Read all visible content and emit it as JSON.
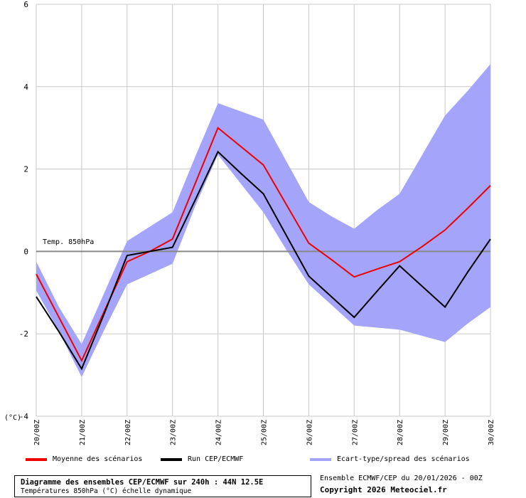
{
  "chart_data": {
    "type": "line",
    "title": "Diagramme des ensembles CEP/ECMWF sur 240h : 44N 12.5E",
    "subtitle": "Températures 850hPa (°C) échelle dynamique",
    "ylabel": "(°C)",
    "xlabel": "",
    "ylim": [
      -4,
      6
    ],
    "yticks": [
      -4,
      -2,
      0,
      2,
      4,
      6
    ],
    "ytick_labels": [
      "-4",
      "-2",
      "0",
      "2",
      "4",
      "6"
    ],
    "categories": [
      "20/00Z",
      "21/00Z",
      "22/00Z",
      "23/00Z",
      "24/00Z",
      "25/00Z",
      "26/00Z",
      "27/00Z",
      "28/00Z",
      "29/00Z",
      "30/00Z"
    ],
    "x": [
      0,
      0.5,
      1,
      1.5,
      2,
      2.5,
      3,
      3.5,
      4,
      4.5,
      5,
      5.5,
      6,
      6.5,
      7,
      7.5,
      8,
      8.5,
      9,
      9.5,
      10
    ],
    "reference_line": {
      "value": 0,
      "label": "Temp. 850hPa",
      "color": "#888888"
    },
    "grid": true,
    "series": [
      {
        "name": "Ecart-type/spread des scénarios",
        "kind": "band",
        "color": "#a4a4fa",
        "upper": [
          -0.25,
          -1.35,
          -2.25,
          -1.0,
          0.25,
          0.6,
          0.95,
          2.3,
          3.6,
          3.4,
          3.2,
          2.2,
          1.2,
          0.85,
          0.55,
          1.0,
          1.4,
          2.35,
          3.3,
          3.9,
          4.55
        ],
        "lower": [
          -0.95,
          -1.95,
          -3.05,
          -1.9,
          -0.8,
          -0.55,
          -0.3,
          1.1,
          2.35,
          1.65,
          0.95,
          0.05,
          -0.8,
          -1.3,
          -1.8,
          -1.85,
          -1.9,
          -2.05,
          -2.2,
          -1.75,
          -1.35
        ]
      },
      {
        "name": "Moyenne des scénarios",
        "kind": "line",
        "color": "#ee0000",
        "values": [
          -0.55,
          -1.6,
          -2.65,
          -1.45,
          -0.25,
          0.0,
          0.3,
          1.65,
          3.0,
          2.55,
          2.1,
          1.15,
          0.2,
          -0.2,
          -0.62,
          -0.43,
          -0.25,
          0.12,
          0.52,
          1.05,
          1.6
        ]
      },
      {
        "name": "Run CEP/ECMWF",
        "kind": "line",
        "color": "#000000",
        "values": [
          -1.1,
          -1.95,
          -2.85,
          -1.5,
          -0.1,
          -0.0,
          0.1,
          1.25,
          2.42,
          1.9,
          1.4,
          0.4,
          -0.6,
          -1.1,
          -1.6,
          -0.97,
          -0.35,
          -0.85,
          -1.35,
          -0.5,
          0.3
        ]
      }
    ],
    "legend_position": "bottom"
  },
  "legend": {
    "mean_label": "Moyenne des scénarios",
    "run_label": "Run CEP/ECMWF",
    "spread_label": "Ecart-type/spread des scénarios",
    "mean_color": "#ee0000",
    "run_color": "#000000",
    "spread_color": "#a4a4fa"
  },
  "info": {
    "title": "Diagramme des ensembles CEP/ECMWF sur 240h : 44N 12.5E",
    "subtitle": "Températures 850hPa (°C) échelle dynamique",
    "ensemble_run": "Ensemble ECMWF/CEP du 20/01/2026 - 00Z",
    "copyright": "Copyright 2026 Meteociel.fr"
  }
}
